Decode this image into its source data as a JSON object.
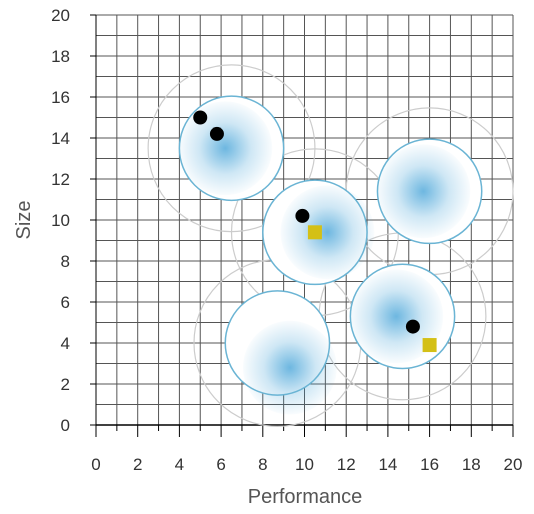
{
  "chart_data": {
    "type": "scatter",
    "xlabel": "Performance",
    "ylabel": "Size",
    "xlim": [
      0,
      20
    ],
    "ylim": [
      0,
      20
    ],
    "xticks": [
      0,
      2,
      4,
      6,
      8,
      10,
      12,
      14,
      16,
      18,
      20
    ],
    "yticks": [
      0,
      2,
      4,
      6,
      8,
      10,
      12,
      14,
      16,
      18,
      20
    ],
    "grid": true,
    "bubbles": [
      {
        "x": 6.5,
        "y": 13.5,
        "r": 2.5,
        "outer_r": 4
      },
      {
        "x": 10.5,
        "y": 9.4,
        "r": 2.5,
        "outer_r": 4
      },
      {
        "x": 16.0,
        "y": 11.4,
        "r": 2.5,
        "outer_r": 4
      },
      {
        "x": 8.7,
        "y": 4.0,
        "r": 2.5,
        "outer_r": 4
      },
      {
        "x": 14.7,
        "y": 5.3,
        "r": 2.5,
        "outer_r": 4
      }
    ],
    "series": [
      {
        "marker": "circle",
        "color": "#000000",
        "points": [
          {
            "x": 5.0,
            "y": 15.0
          },
          {
            "x": 5.8,
            "y": 14.2
          },
          {
            "x": 9.9,
            "y": 10.2
          },
          {
            "x": 15.2,
            "y": 4.8
          }
        ]
      },
      {
        "marker": "square",
        "color": "#d4c016",
        "points": [
          {
            "x": 10.5,
            "y": 9.4
          },
          {
            "x": 16.0,
            "y": 3.9
          }
        ]
      }
    ],
    "colors": {
      "grid": "#555555",
      "bubble_stroke": "#6ab4d4",
      "bubble_fill": "#3d9fd6",
      "outer_ring": "#cccccc"
    }
  }
}
